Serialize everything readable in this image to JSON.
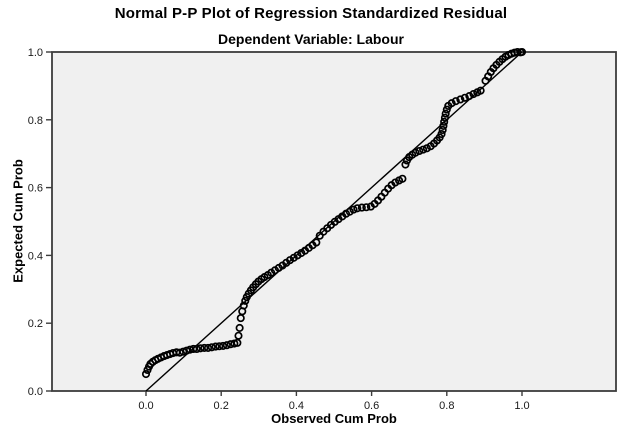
{
  "figure": {
    "type": "statistical-plot",
    "source_style": "SPSS output chart"
  },
  "chart_data": {
    "type": "scatter",
    "title": "Normal P-P Plot of Regression Standardized Residual",
    "subtitle": "Dependent Variable: Labour",
    "xlabel": "Observed Cum Prob",
    "ylabel": "Expected Cum Prob",
    "xlim": [
      -0.25,
      1.25
    ],
    "ylim": [
      0.0,
      1.0
    ],
    "x_ticks": [
      0.0,
      0.2,
      0.4,
      0.6,
      0.8,
      1.0
    ],
    "y_ticks": [
      0.0,
      0.2,
      0.4,
      0.6,
      0.8,
      1.0
    ],
    "x_tick_labels": [
      "0.0",
      "0.2",
      "0.4",
      "0.6",
      "0.8",
      "1.0"
    ],
    "y_tick_labels": [
      "0.0",
      "0.2",
      "0.4",
      "0.6",
      "0.8",
      "1.0"
    ],
    "grid": false,
    "legend": "none",
    "plot_bg_color": "#f0f0f0",
    "frame_color": "#3c3c3c",
    "marker": "open-circle",
    "marker_color": "#000000",
    "reference_line": {
      "from": [
        0,
        0
      ],
      "to": [
        1,
        1
      ],
      "color": "#000000"
    },
    "points": [
      [
        0.0,
        0.05
      ],
      [
        0.004,
        0.062
      ],
      [
        0.008,
        0.072
      ],
      [
        0.012,
        0.08
      ],
      [
        0.018,
        0.086
      ],
      [
        0.025,
        0.091
      ],
      [
        0.032,
        0.095
      ],
      [
        0.04,
        0.099
      ],
      [
        0.048,
        0.103
      ],
      [
        0.056,
        0.106
      ],
      [
        0.064,
        0.109
      ],
      [
        0.072,
        0.112
      ],
      [
        0.081,
        0.114
      ],
      [
        0.09,
        0.113
      ],
      [
        0.099,
        0.116
      ],
      [
        0.108,
        0.119
      ],
      [
        0.117,
        0.122
      ],
      [
        0.126,
        0.124
      ],
      [
        0.135,
        0.124
      ],
      [
        0.145,
        0.126
      ],
      [
        0.155,
        0.127
      ],
      [
        0.165,
        0.127
      ],
      [
        0.175,
        0.129
      ],
      [
        0.185,
        0.131
      ],
      [
        0.195,
        0.132
      ],
      [
        0.205,
        0.133
      ],
      [
        0.215,
        0.135
      ],
      [
        0.225,
        0.138
      ],
      [
        0.235,
        0.14
      ],
      [
        0.243,
        0.142
      ],
      [
        0.246,
        0.163
      ],
      [
        0.249,
        0.186
      ],
      [
        0.252,
        0.215
      ],
      [
        0.256,
        0.235
      ],
      [
        0.26,
        0.252
      ],
      [
        0.264,
        0.266
      ],
      [
        0.268,
        0.277
      ],
      [
        0.273,
        0.287
      ],
      [
        0.279,
        0.297
      ],
      [
        0.285,
        0.306
      ],
      [
        0.292,
        0.315
      ],
      [
        0.299,
        0.323
      ],
      [
        0.307,
        0.33
      ],
      [
        0.315,
        0.336
      ],
      [
        0.324,
        0.342
      ],
      [
        0.333,
        0.349
      ],
      [
        0.343,
        0.356
      ],
      [
        0.353,
        0.363
      ],
      [
        0.363,
        0.37
      ],
      [
        0.373,
        0.378
      ],
      [
        0.383,
        0.386
      ],
      [
        0.393,
        0.393
      ],
      [
        0.403,
        0.4
      ],
      [
        0.413,
        0.407
      ],
      [
        0.423,
        0.414
      ],
      [
        0.433,
        0.422
      ],
      [
        0.443,
        0.43
      ],
      [
        0.453,
        0.438
      ],
      [
        0.462,
        0.458
      ],
      [
        0.472,
        0.47
      ],
      [
        0.482,
        0.48
      ],
      [
        0.492,
        0.49
      ],
      [
        0.502,
        0.499
      ],
      [
        0.512,
        0.507
      ],
      [
        0.522,
        0.515
      ],
      [
        0.532,
        0.523
      ],
      [
        0.542,
        0.529
      ],
      [
        0.552,
        0.535
      ],
      [
        0.562,
        0.539
      ],
      [
        0.574,
        0.541
      ],
      [
        0.586,
        0.542
      ],
      [
        0.598,
        0.544
      ],
      [
        0.608,
        0.552
      ],
      [
        0.617,
        0.562
      ],
      [
        0.626,
        0.573
      ],
      [
        0.635,
        0.585
      ],
      [
        0.644,
        0.597
      ],
      [
        0.653,
        0.607
      ],
      [
        0.663,
        0.615
      ],
      [
        0.673,
        0.621
      ],
      [
        0.682,
        0.626
      ],
      [
        0.69,
        0.668
      ],
      [
        0.694,
        0.68
      ],
      [
        0.7,
        0.69
      ],
      [
        0.708,
        0.697
      ],
      [
        0.717,
        0.703
      ],
      [
        0.727,
        0.708
      ],
      [
        0.737,
        0.712
      ],
      [
        0.747,
        0.716
      ],
      [
        0.757,
        0.722
      ],
      [
        0.766,
        0.73
      ],
      [
        0.774,
        0.739
      ],
      [
        0.781,
        0.748
      ],
      [
        0.786,
        0.758
      ],
      [
        0.789,
        0.77
      ],
      [
        0.791,
        0.782
      ],
      [
        0.793,
        0.794
      ],
      [
        0.795,
        0.806
      ],
      [
        0.797,
        0.818
      ],
      [
        0.8,
        0.83
      ],
      [
        0.804,
        0.841
      ],
      [
        0.813,
        0.849
      ],
      [
        0.824,
        0.855
      ],
      [
        0.836,
        0.86
      ],
      [
        0.848,
        0.865
      ],
      [
        0.86,
        0.87
      ],
      [
        0.871,
        0.876
      ],
      [
        0.881,
        0.881
      ],
      [
        0.89,
        0.886
      ],
      [
        0.903,
        0.915
      ],
      [
        0.91,
        0.928
      ],
      [
        0.917,
        0.941
      ],
      [
        0.924,
        0.952
      ],
      [
        0.932,
        0.962
      ],
      [
        0.94,
        0.971
      ],
      [
        0.948,
        0.979
      ],
      [
        0.956,
        0.986
      ],
      [
        0.964,
        0.991
      ],
      [
        0.972,
        0.995
      ],
      [
        0.98,
        0.998
      ],
      [
        0.988,
        1.0
      ],
      [
        0.996,
        0.999
      ],
      [
        1.0,
        1.0
      ]
    ]
  }
}
